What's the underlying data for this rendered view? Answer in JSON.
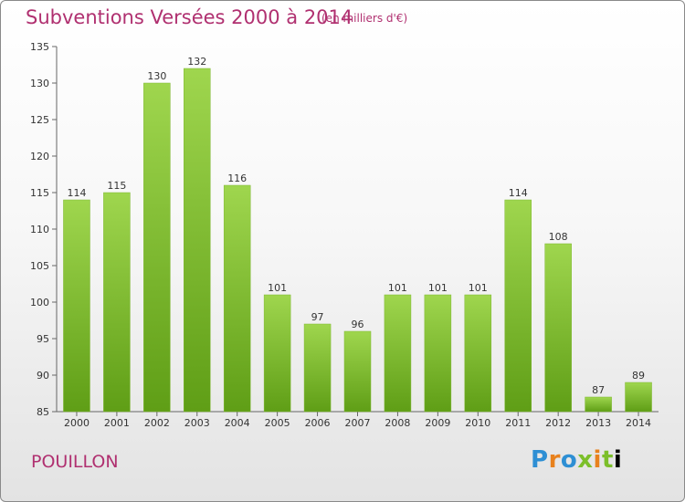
{
  "header": {
    "title": "Subventions Versées 2000 à 2014",
    "unit": "(en milliers d'€)"
  },
  "footer": {
    "place": "POUILLON",
    "logo": "Proxiti"
  },
  "colors": {
    "bar_light": "#9fd64e",
    "bar_dark": "#5f9e16",
    "title": "#b03070"
  },
  "chart_data": {
    "type": "bar",
    "title": "Subventions Versées 2000 à 2014",
    "subtitle": "(en milliers d'€)",
    "categories": [
      "2000",
      "2001",
      "2002",
      "2003",
      "2004",
      "2005",
      "2006",
      "2007",
      "2008",
      "2009",
      "2010",
      "2011",
      "2012",
      "2013",
      "2014"
    ],
    "values": [
      114,
      115,
      130,
      132,
      116,
      101,
      97,
      96,
      101,
      101,
      101,
      114,
      108,
      87,
      89
    ],
    "ylim": [
      85,
      135
    ],
    "yticks": [
      85,
      90,
      95,
      100,
      105,
      110,
      115,
      120,
      125,
      130,
      135
    ],
    "grid": false,
    "legend": "none"
  }
}
